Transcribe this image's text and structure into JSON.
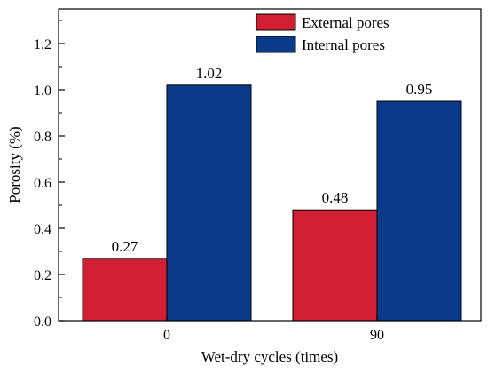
{
  "chart_data": {
    "type": "bar",
    "xlabel": "Wet-dry cycles (times)",
    "ylabel": "Porosity (%)",
    "categories": [
      "0",
      "90"
    ],
    "ylim": [
      0,
      1.35
    ],
    "yticks": [
      0.0,
      0.2,
      0.4,
      0.6,
      0.8,
      1.0,
      1.2
    ],
    "ytick_labels": [
      "0.0",
      "0.2",
      "0.4",
      "0.6",
      "0.8",
      "1.0",
      "1.2"
    ],
    "series": [
      {
        "name": "External pores",
        "values": [
          0.27,
          0.48
        ],
        "labels": [
          "0.27",
          "0.48"
        ],
        "color": "#d21e32"
      },
      {
        "name": "Internal pores",
        "values": [
          1.02,
          0.95
        ],
        "labels": [
          "1.02",
          "0.95"
        ],
        "color": "#0b3a8a"
      }
    ],
    "legend": "top-right",
    "grid": false
  }
}
